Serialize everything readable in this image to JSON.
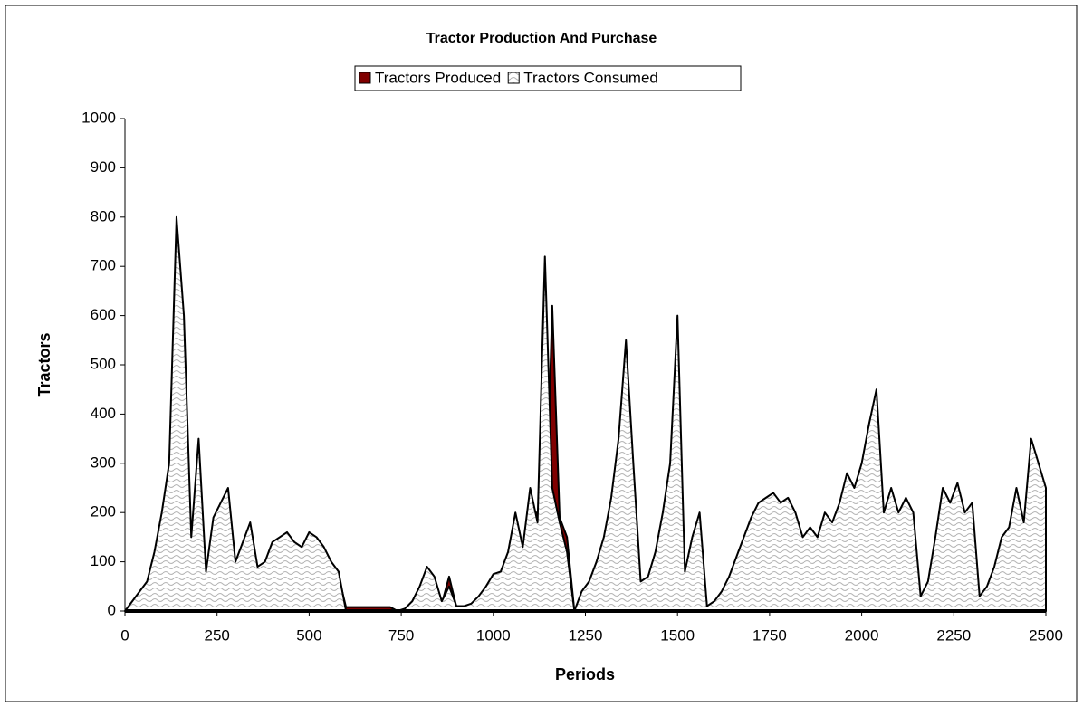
{
  "chart_data": {
    "type": "area",
    "title": "Tractor Production And Purchase",
    "x_label": "Periods",
    "y_label": "Tractors",
    "x": [
      0,
      20,
      40,
      60,
      80,
      100,
      120,
      140,
      160,
      180,
      200,
      220,
      240,
      260,
      280,
      300,
      320,
      340,
      360,
      380,
      400,
      420,
      440,
      460,
      480,
      500,
      520,
      540,
      560,
      580,
      600,
      620,
      640,
      660,
      680,
      700,
      720,
      740,
      760,
      780,
      800,
      820,
      840,
      860,
      880,
      900,
      920,
      940,
      960,
      980,
      1000,
      1020,
      1040,
      1060,
      1080,
      1100,
      1120,
      1140,
      1160,
      1180,
      1200,
      1220,
      1240,
      1260,
      1280,
      1300,
      1320,
      1340,
      1360,
      1380,
      1400,
      1420,
      1440,
      1460,
      1480,
      1500,
      1520,
      1540,
      1560,
      1580,
      1600,
      1620,
      1640,
      1660,
      1680,
      1700,
      1720,
      1740,
      1760,
      1780,
      1800,
      1820,
      1840,
      1860,
      1880,
      1900,
      1920,
      1940,
      1960,
      1980,
      2000,
      2020,
      2040,
      2060,
      2080,
      2100,
      2120,
      2140,
      2160,
      2180,
      2200,
      2220,
      2240,
      2260,
      2280,
      2300,
      2320,
      2340,
      2360,
      2380,
      2400,
      2420,
      2440,
      2460,
      2480,
      2500
    ],
    "series": [
      {
        "name": "Tractors Produced",
        "color": "#800000",
        "values": [
          0,
          15,
          30,
          50,
          100,
          170,
          250,
          600,
          500,
          120,
          300,
          60,
          160,
          190,
          220,
          90,
          120,
          160,
          80,
          90,
          120,
          130,
          140,
          120,
          110,
          140,
          130,
          110,
          90,
          70,
          8,
          8,
          8,
          8,
          8,
          8,
          8,
          0,
          4,
          15,
          40,
          80,
          60,
          15,
          70,
          8,
          8,
          12,
          25,
          40,
          60,
          70,
          100,
          150,
          110,
          200,
          200,
          100,
          620,
          190,
          150,
          0,
          30,
          50,
          80,
          120,
          200,
          300,
          450,
          250,
          50,
          60,
          100,
          170,
          250,
          500,
          70,
          130,
          170,
          8,
          15,
          35,
          60,
          90,
          130,
          160,
          190,
          200,
          210,
          190,
          200,
          170,
          130,
          150,
          130,
          170,
          150,
          190,
          240,
          220,
          260,
          330,
          400,
          170,
          210,
          170,
          200,
          170,
          20,
          50,
          130,
          210,
          190,
          220,
          170,
          190,
          20,
          40,
          80,
          130,
          150,
          210,
          150,
          300,
          260,
          210
        ]
      },
      {
        "name": "Tractors Consumed",
        "color": "#c8c8c8",
        "values": [
          0,
          20,
          40,
          60,
          120,
          200,
          300,
          800,
          600,
          150,
          350,
          80,
          190,
          220,
          250,
          100,
          140,
          180,
          90,
          100,
          140,
          150,
          160,
          140,
          130,
          160,
          150,
          130,
          100,
          80,
          0,
          0,
          0,
          0,
          0,
          0,
          0,
          0,
          5,
          20,
          50,
          90,
          70,
          20,
          50,
          10,
          10,
          15,
          30,
          50,
          75,
          80,
          120,
          200,
          130,
          250,
          180,
          720,
          250,
          180,
          120,
          0,
          40,
          60,
          100,
          150,
          230,
          350,
          550,
          300,
          60,
          70,
          120,
          200,
          300,
          600,
          80,
          150,
          200,
          10,
          20,
          40,
          70,
          110,
          150,
          190,
          220,
          230,
          240,
          220,
          230,
          200,
          150,
          170,
          150,
          200,
          180,
          220,
          280,
          250,
          300,
          380,
          450,
          200,
          250,
          200,
          230,
          200,
          30,
          60,
          150,
          250,
          220,
          260,
          200,
          220,
          30,
          50,
          90,
          150,
          170,
          250,
          180,
          350,
          300,
          250
        ]
      }
    ],
    "xlim": [
      0,
      2500
    ],
    "xticks": [
      0,
      250,
      500,
      750,
      1000,
      1250,
      1500,
      1750,
      2000,
      2250,
      2500
    ],
    "ylim": [
      0,
      1000
    ],
    "yticks": [
      0,
      100,
      200,
      300,
      400,
      500,
      600,
      700,
      800,
      900,
      1000
    ],
    "legend": "top"
  }
}
